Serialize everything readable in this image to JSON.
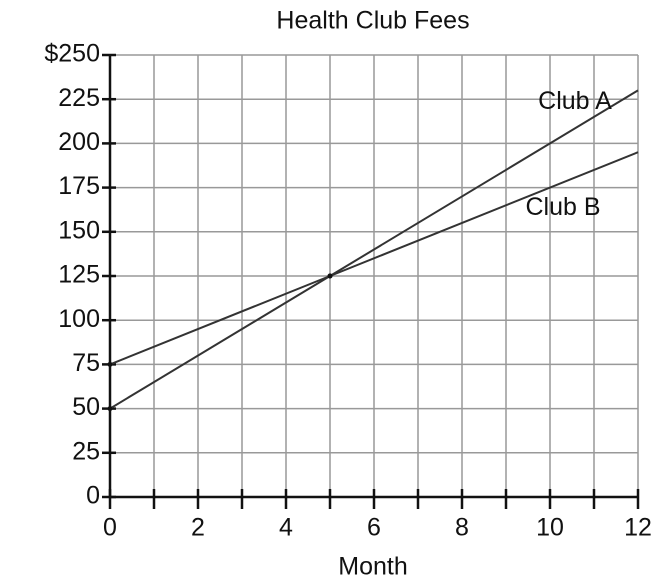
{
  "chart_data": {
    "type": "line",
    "title": "Health Club Fees",
    "x_label": "Month",
    "x": [
      0,
      5,
      12
    ],
    "series": [
      {
        "name": "Club A",
        "color": "#333333",
        "values": [
          50,
          125,
          230
        ]
      },
      {
        "name": "Club B",
        "color": "#333333",
        "values": [
          75,
          125,
          195
        ]
      }
    ],
    "xlim": [
      0,
      12
    ],
    "xticks": [
      0,
      2,
      4,
      6,
      8,
      10,
      12
    ],
    "xticks_minor": [
      1,
      3,
      5,
      7,
      9,
      11
    ],
    "ylim": [
      0,
      250
    ],
    "yticks": [
      0,
      25,
      50,
      75,
      100,
      125,
      150,
      175,
      200,
      225,
      {
        "value": 250,
        "label": "$250"
      }
    ],
    "grid": true
  }
}
